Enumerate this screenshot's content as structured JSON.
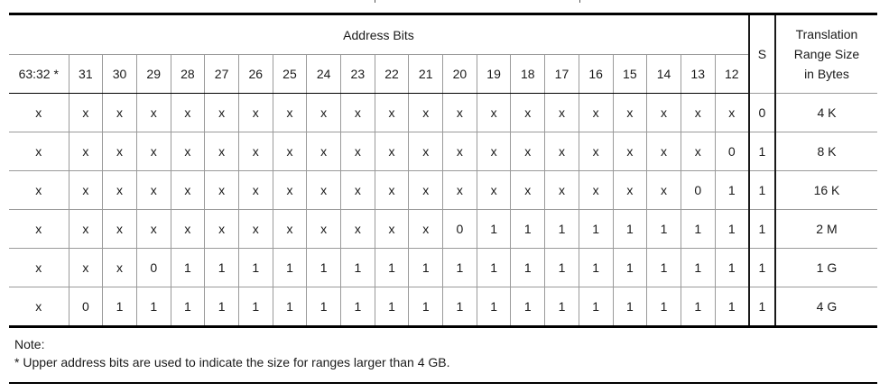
{
  "table": {
    "header_group": "Address Bits",
    "s_header": "S",
    "size_header_lines": [
      "Translation",
      "Range Size",
      "in Bytes"
    ],
    "bit_headers": [
      "63:32 *",
      "31",
      "30",
      "29",
      "28",
      "27",
      "26",
      "25",
      "24",
      "23",
      "22",
      "21",
      "20",
      "19",
      "18",
      "17",
      "16",
      "15",
      "14",
      "13",
      "12"
    ],
    "rows": [
      {
        "bits": [
          "x",
          "x",
          "x",
          "x",
          "x",
          "x",
          "x",
          "x",
          "x",
          "x",
          "x",
          "x",
          "x",
          "x",
          "x",
          "x",
          "x",
          "x",
          "x",
          "x",
          "x"
        ],
        "s": "0",
        "size": "4 K"
      },
      {
        "bits": [
          "x",
          "x",
          "x",
          "x",
          "x",
          "x",
          "x",
          "x",
          "x",
          "x",
          "x",
          "x",
          "x",
          "x",
          "x",
          "x",
          "x",
          "x",
          "x",
          "x",
          "0"
        ],
        "s": "1",
        "size": "8 K"
      },
      {
        "bits": [
          "x",
          "x",
          "x",
          "x",
          "x",
          "x",
          "x",
          "x",
          "x",
          "x",
          "x",
          "x",
          "x",
          "x",
          "x",
          "x",
          "x",
          "x",
          "x",
          "0",
          "1"
        ],
        "s": "1",
        "size": "16 K"
      },
      {
        "bits": [
          "x",
          "x",
          "x",
          "x",
          "x",
          "x",
          "x",
          "x",
          "x",
          "x",
          "x",
          "x",
          "0",
          "1",
          "1",
          "1",
          "1",
          "1",
          "1",
          "1",
          "1"
        ],
        "s": "1",
        "size": "2 M"
      },
      {
        "bits": [
          "x",
          "x",
          "x",
          "0",
          "1",
          "1",
          "1",
          "1",
          "1",
          "1",
          "1",
          "1",
          "1",
          "1",
          "1",
          "1",
          "1",
          "1",
          "1",
          "1",
          "1"
        ],
        "s": "1",
        "size": "1 G"
      },
      {
        "bits": [
          "x",
          "0",
          "1",
          "1",
          "1",
          "1",
          "1",
          "1",
          "1",
          "1",
          "1",
          "1",
          "1",
          "1",
          "1",
          "1",
          "1",
          "1",
          "1",
          "1",
          "1"
        ],
        "s": "1",
        "size": "4 G"
      }
    ]
  },
  "note": {
    "title": "Note:",
    "text": "* Upper address bits are used to indicate the size for ranges larger than 4 GB."
  }
}
